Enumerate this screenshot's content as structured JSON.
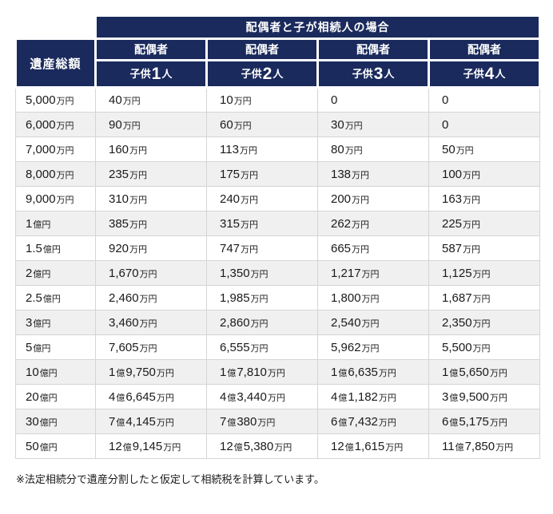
{
  "chart_data": {
    "type": "table",
    "title": "配偶者と子が相続人の場合",
    "corner_header": "遺産総額",
    "columns": [
      {
        "spouse": "配偶者",
        "child_prefix": "子供",
        "child_count": "1",
        "child_suffix": "人"
      },
      {
        "spouse": "配偶者",
        "child_prefix": "子供",
        "child_count": "2",
        "child_suffix": "人"
      },
      {
        "spouse": "配偶者",
        "child_prefix": "子供",
        "child_count": "3",
        "child_suffix": "人"
      },
      {
        "spouse": "配偶者",
        "child_prefix": "子供",
        "child_count": "4",
        "child_suffix": "人"
      }
    ],
    "rows": [
      {
        "total": "5,000万円",
        "values": [
          "40万円",
          "10万円",
          "0",
          "0"
        ]
      },
      {
        "total": "6,000万円",
        "values": [
          "90万円",
          "60万円",
          "30万円",
          "0"
        ]
      },
      {
        "total": "7,000万円",
        "values": [
          "160万円",
          "113万円",
          "80万円",
          "50万円"
        ]
      },
      {
        "total": "8,000万円",
        "values": [
          "235万円",
          "175万円",
          "138万円",
          "100万円"
        ]
      },
      {
        "total": "9,000万円",
        "values": [
          "310万円",
          "240万円",
          "200万円",
          "163万円"
        ]
      },
      {
        "total": "1億円",
        "values": [
          "385万円",
          "315万円",
          "262万円",
          "225万円"
        ]
      },
      {
        "total": "1.5億円",
        "values": [
          "920万円",
          "747万円",
          "665万円",
          "587万円"
        ]
      },
      {
        "total": "2億円",
        "values": [
          "1,670万円",
          "1,350万円",
          "1,217万円",
          "1,125万円"
        ]
      },
      {
        "total": "2.5億円",
        "values": [
          "2,460万円",
          "1,985万円",
          "1,800万円",
          "1,687万円"
        ]
      },
      {
        "total": "3億円",
        "values": [
          "3,460万円",
          "2,860万円",
          "2,540万円",
          "2,350万円"
        ]
      },
      {
        "total": "5億円",
        "values": [
          "7,605万円",
          "6,555万円",
          "5,962万円",
          "5,500万円"
        ]
      },
      {
        "total": "10億円",
        "values": [
          "1億9,750万円",
          "1億7,810万円",
          "1億6,635万円",
          "1億5,650万円"
        ]
      },
      {
        "total": "20億円",
        "values": [
          "4億6,645万円",
          "4億3,440万円",
          "4億1,182万円",
          "3億9,500万円"
        ]
      },
      {
        "total": "30億円",
        "values": [
          "7億4,145万円",
          "7億380万円",
          "6億7,432万円",
          "6億5,175万円"
        ]
      },
      {
        "total": "50億円",
        "values": [
          "12億9,145万円",
          "12億5,380万円",
          "12億1,615万円",
          "11億7,850万円"
        ]
      }
    ]
  },
  "footnote": "※法定相続分で遺産分割したと仮定して相続税を計算しています。",
  "colors": {
    "header_bg": "#1a2a5c",
    "alt_row_bg": "#f0f0f0",
    "border": "#d5d5d5",
    "text": "#1a1a1a"
  }
}
